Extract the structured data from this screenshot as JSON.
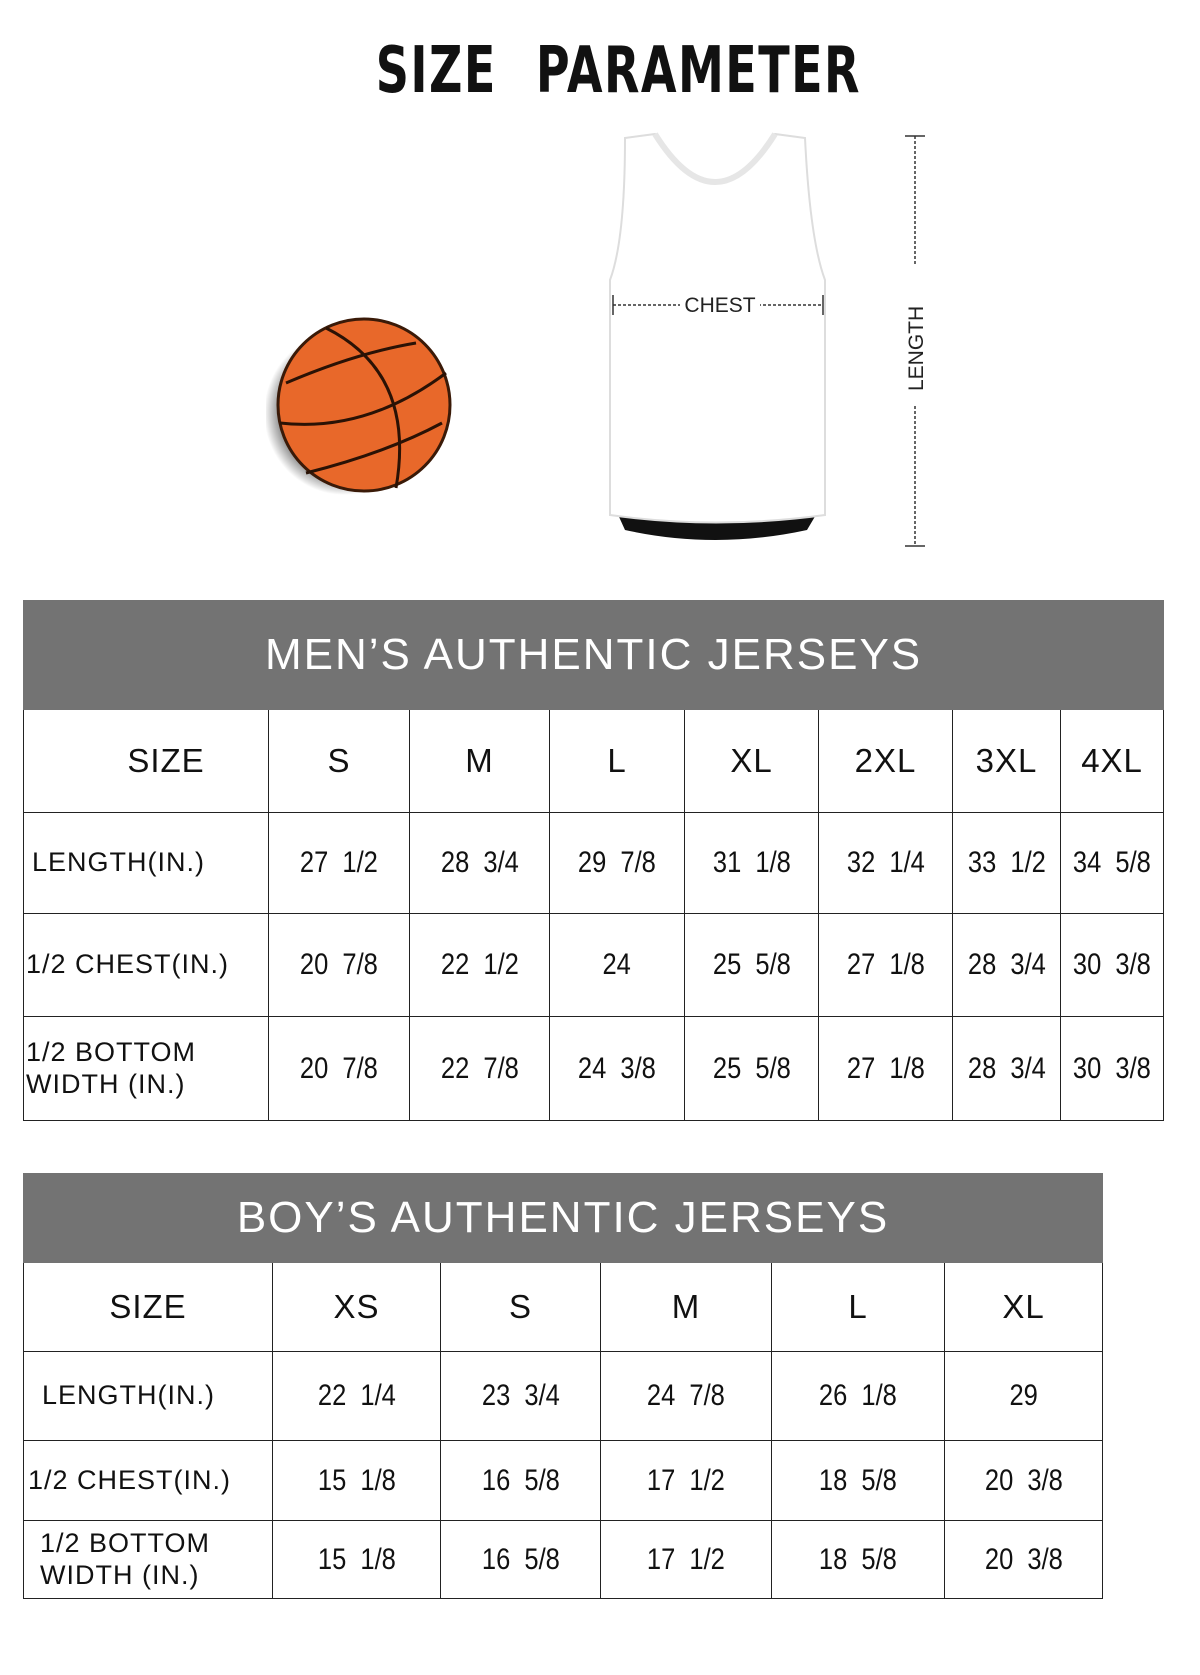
{
  "title": "SIZE PARAMETER",
  "diagram": {
    "chest_label": "CHEST",
    "length_label": "LENGTH"
  },
  "colors": {
    "header_bg": "#737373",
    "ball": "#e8682a"
  },
  "mens": {
    "title": "MEN’S AUTHENTIC JERSEYS",
    "size_label": "SIZE",
    "sizes": [
      "S",
      "M",
      "L",
      "XL",
      "2XL",
      "3XL",
      "4XL"
    ],
    "rows": [
      {
        "label": "LENGTH(IN.)",
        "values": [
          "27  1/2",
          "28  3/4",
          "29  7/8",
          "31  1/8",
          "32  1/4",
          "33  1/2",
          "34  5/8"
        ]
      },
      {
        "label": "1/2 CHEST(IN.)",
        "values": [
          "20  7/8",
          "22  1/2",
          "24",
          "25  5/8",
          "27  1/8",
          "28  3/4",
          "30  3/8"
        ]
      },
      {
        "label": "1/2 BOTTOM WIDTH  (IN.)",
        "values": [
          "20  7/8",
          "22  7/8",
          "24  3/8",
          "25  5/8",
          "27  1/8",
          "28  3/4",
          "30  3/8"
        ]
      }
    ]
  },
  "boys": {
    "title": "BOY’S AUTHENTIC JERSEYS",
    "size_label": "SIZE",
    "sizes": [
      "XS",
      "S",
      "M",
      "L",
      "XL"
    ],
    "rows": [
      {
        "label": "LENGTH(IN.)",
        "values": [
          "22  1/4",
          "23  3/4",
          "24  7/8",
          "26  1/8",
          "29"
        ]
      },
      {
        "label": "1/2 CHEST(IN.)",
        "values": [
          "15  1/8",
          "16  5/8",
          "17  1/2",
          "18  5/8",
          "20  3/8"
        ]
      },
      {
        "label": "1/2 BOTTOM WIDTH  (IN.)",
        "values": [
          "15  1/8",
          "16  5/8",
          "17  1/2",
          "18  5/8",
          "20  3/8"
        ]
      }
    ]
  }
}
